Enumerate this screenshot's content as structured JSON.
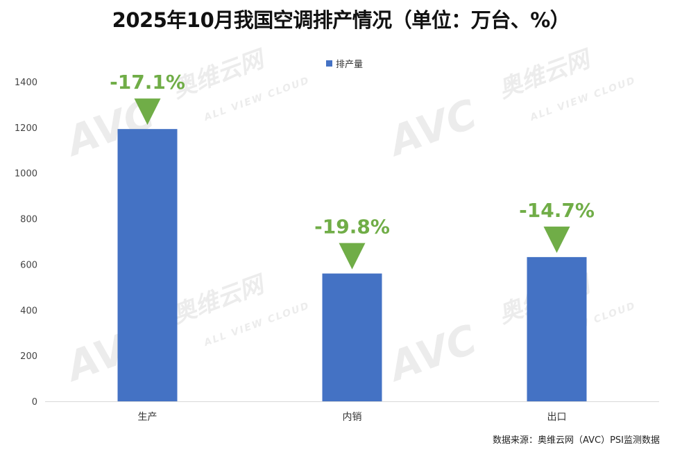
{
  "title": "2025年10月我国空调排产情况（单位：万台、%）",
  "source": "数据来源：奥维云网（AVC）PSI监测数据",
  "watermark": {
    "brand": "AVC",
    "cn": "奥维云网",
    "en": "ALL VIEW CLOUD"
  },
  "colors": {
    "bar": "#4472C4",
    "arrow": "#70AD47",
    "change_text": "#70AD47",
    "axis": "#D9D9D9"
  },
  "chart_data": {
    "type": "bar",
    "title": "2025年10月我国空调排产情况（单位：万台、%）",
    "categories": [
      "生产",
      "内销",
      "出口"
    ],
    "series": [
      {
        "name": "排产量",
        "values": [
          1193,
          560,
          632
        ]
      }
    ],
    "annotations": [
      "-17.1%",
      "-19.8%",
      "-14.7%"
    ],
    "annotation_marker": "down-arrow",
    "ylim": [
      0,
      1400
    ],
    "yticks": [
      0,
      200,
      400,
      600,
      800,
      1000,
      1200,
      1400
    ],
    "xlabel": "",
    "ylabel": "",
    "legend_position": "top-center",
    "grid": false
  }
}
